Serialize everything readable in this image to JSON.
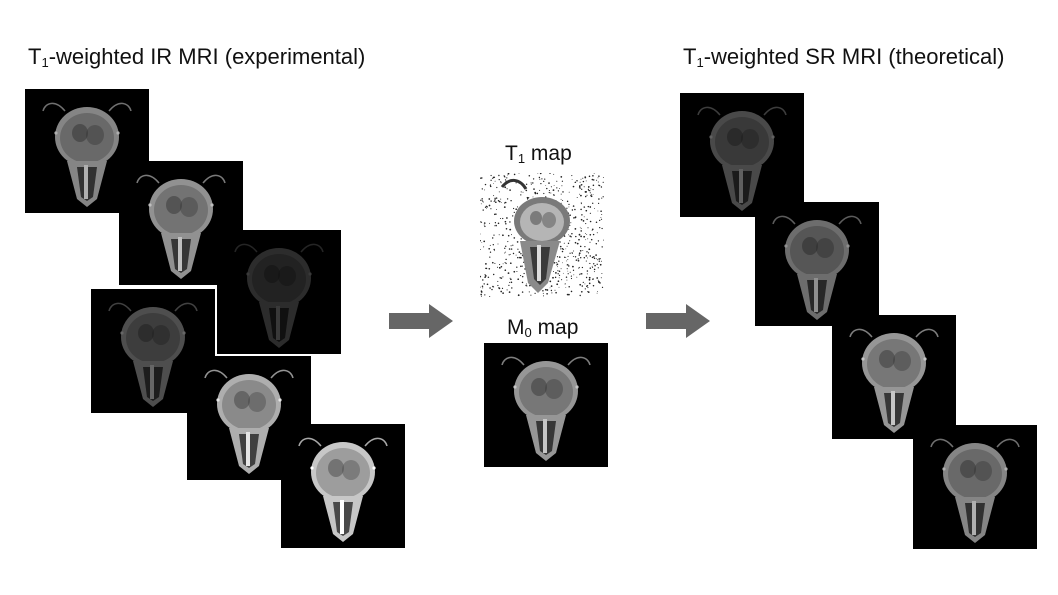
{
  "left_title": {
    "prefix": "T",
    "sub": "1",
    "rest": "-weighted IR MRI (experimental)"
  },
  "right_title": {
    "prefix": "T",
    "sub": "1",
    "rest": "-weighted SR MRI (theoretical)"
  },
  "t1_map": {
    "prefix": "T",
    "sub": "1",
    "rest": " map"
  },
  "m0_map": {
    "prefix": "M",
    "sub": "0",
    "rest": " map"
  },
  "arrow_color": "#666666",
  "experimental_brightness": [
    0.55,
    0.6,
    0.18,
    0.32,
    0.72,
    0.82
  ],
  "theoretical_brightness": [
    0.3,
    0.45,
    0.62,
    0.55
  ],
  "m0_brightness": 0.62
}
